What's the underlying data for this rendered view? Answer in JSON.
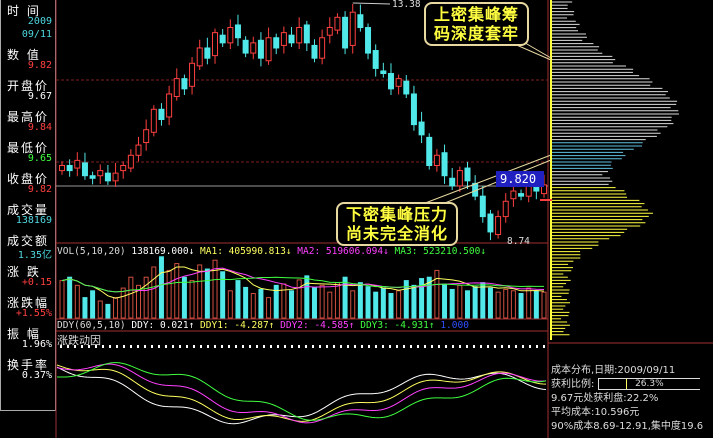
{
  "left_panel": [
    {
      "label": "时 间",
      "values": [
        "2009",
        "09/11"
      ],
      "color": "#4fd8e0"
    },
    {
      "label": "数 值",
      "values": [
        "9.82"
      ],
      "color": "#ff4040"
    },
    {
      "label": "开盘价",
      "values": [
        "9.67"
      ],
      "color": "#ffffff"
    },
    {
      "label": "最高价",
      "values": [
        "9.84"
      ],
      "color": "#ff4040"
    },
    {
      "label": "最低价",
      "values": [
        "9.65"
      ],
      "color": "#40ff40"
    },
    {
      "label": "收盘价",
      "values": [
        "9.82"
      ],
      "color": "#ff4040"
    },
    {
      "label": "成交量",
      "values": [
        "138169"
      ],
      "color": "#4fd8e0"
    },
    {
      "label": "成交额",
      "values": [
        "1.35亿"
      ],
      "color": "#4fd8e0"
    },
    {
      "label": "涨 跌",
      "values": [
        "+0.15"
      ],
      "color": "#ff4040"
    },
    {
      "label": "涨跌幅",
      "values": [
        "+1.55%"
      ],
      "color": "#ff4040"
    },
    {
      "label": "振 幅",
      "values": [
        "1.96%"
      ],
      "color": "#ffffff"
    },
    {
      "label": "换手率",
      "values": [
        "0.37%"
      ],
      "color": "#ffffff"
    }
  ],
  "price": {
    "high_label": "13.38",
    "low_label": "8.74",
    "current": "9.820"
  },
  "callouts": {
    "top": [
      "上密集峰筹",
      "码深度套牢"
    ],
    "bottom": [
      "下密集峰压力",
      "尚未完全消化"
    ]
  },
  "vol_header": {
    "name": "VOL(5,10,20)",
    "vol": "138169.000↓",
    "ma1": "MA1: 405990.813↓",
    "ma2": "MA2: 519606.094↓",
    "ma3": "MA3: 523210.500↓"
  },
  "ddy_header": {
    "name": "DDY(60,5,10)",
    "ddy": "DDY: 0.021↑",
    "ddy1": "DDY1: -4.287↑",
    "ddy2": "DDY2: -4.585↑",
    "ddy3": "DDY3: -4.931↑",
    "extra": "1.000"
  },
  "indicator_label": "涨跌动因",
  "chip_info": {
    "title": "成本分布,日期:2009/09/11",
    "profit_label": "获利比例:",
    "profit_value": "26.3%",
    "profit_ratio": 0.263,
    "line2": "9.67元处获利盘:22.2%",
    "line3": "平均成本:10.596元",
    "line4": "90%成本8.69-12.91,集中度19.6"
  },
  "colors": {
    "up": "#ff4040",
    "down": "#50e8e8",
    "ma1": "#ffff60",
    "ma2": "#ff40ff",
    "ma3": "#40ff40"
  },
  "chart_data": {
    "type": "candlestick",
    "closes": [
      10.2,
      10.1,
      10.3,
      10.0,
      9.95,
      10.1,
      9.9,
      10.05,
      10.2,
      10.4,
      10.6,
      10.9,
      11.3,
      11.1,
      11.6,
      11.9,
      11.7,
      12.2,
      12.5,
      12.3,
      12.8,
      12.6,
      12.9,
      12.7,
      12.4,
      12.6,
      12.3,
      12.7,
      12.5,
      12.8,
      12.6,
      12.9,
      12.6,
      12.3,
      12.7,
      12.9,
      13.1,
      12.5,
      13.2,
      12.9,
      12.4,
      12.1,
      12.0,
      11.7,
      11.9,
      11.6,
      11.0,
      10.8,
      10.2,
      10.4,
      10.0,
      9.8,
      10.1,
      9.9,
      9.6,
      9.2,
      8.9,
      9.2,
      9.5,
      9.7,
      9.6,
      9.8,
      9.7,
      9.82
    ],
    "volumes": [
      55,
      60,
      48,
      30,
      40,
      25,
      20,
      30,
      44,
      60,
      48,
      60,
      75,
      90,
      70,
      80,
      60,
      55,
      78,
      72,
      85,
      68,
      40,
      55,
      45,
      36,
      42,
      30,
      48,
      50,
      40,
      56,
      62,
      45,
      48,
      38,
      52,
      60,
      40,
      52,
      46,
      38,
      44,
      36,
      40,
      55,
      48,
      58,
      60,
      70,
      50,
      42,
      48,
      40,
      46,
      52,
      44,
      38,
      42,
      40,
      36,
      44,
      40,
      38
    ]
  }
}
